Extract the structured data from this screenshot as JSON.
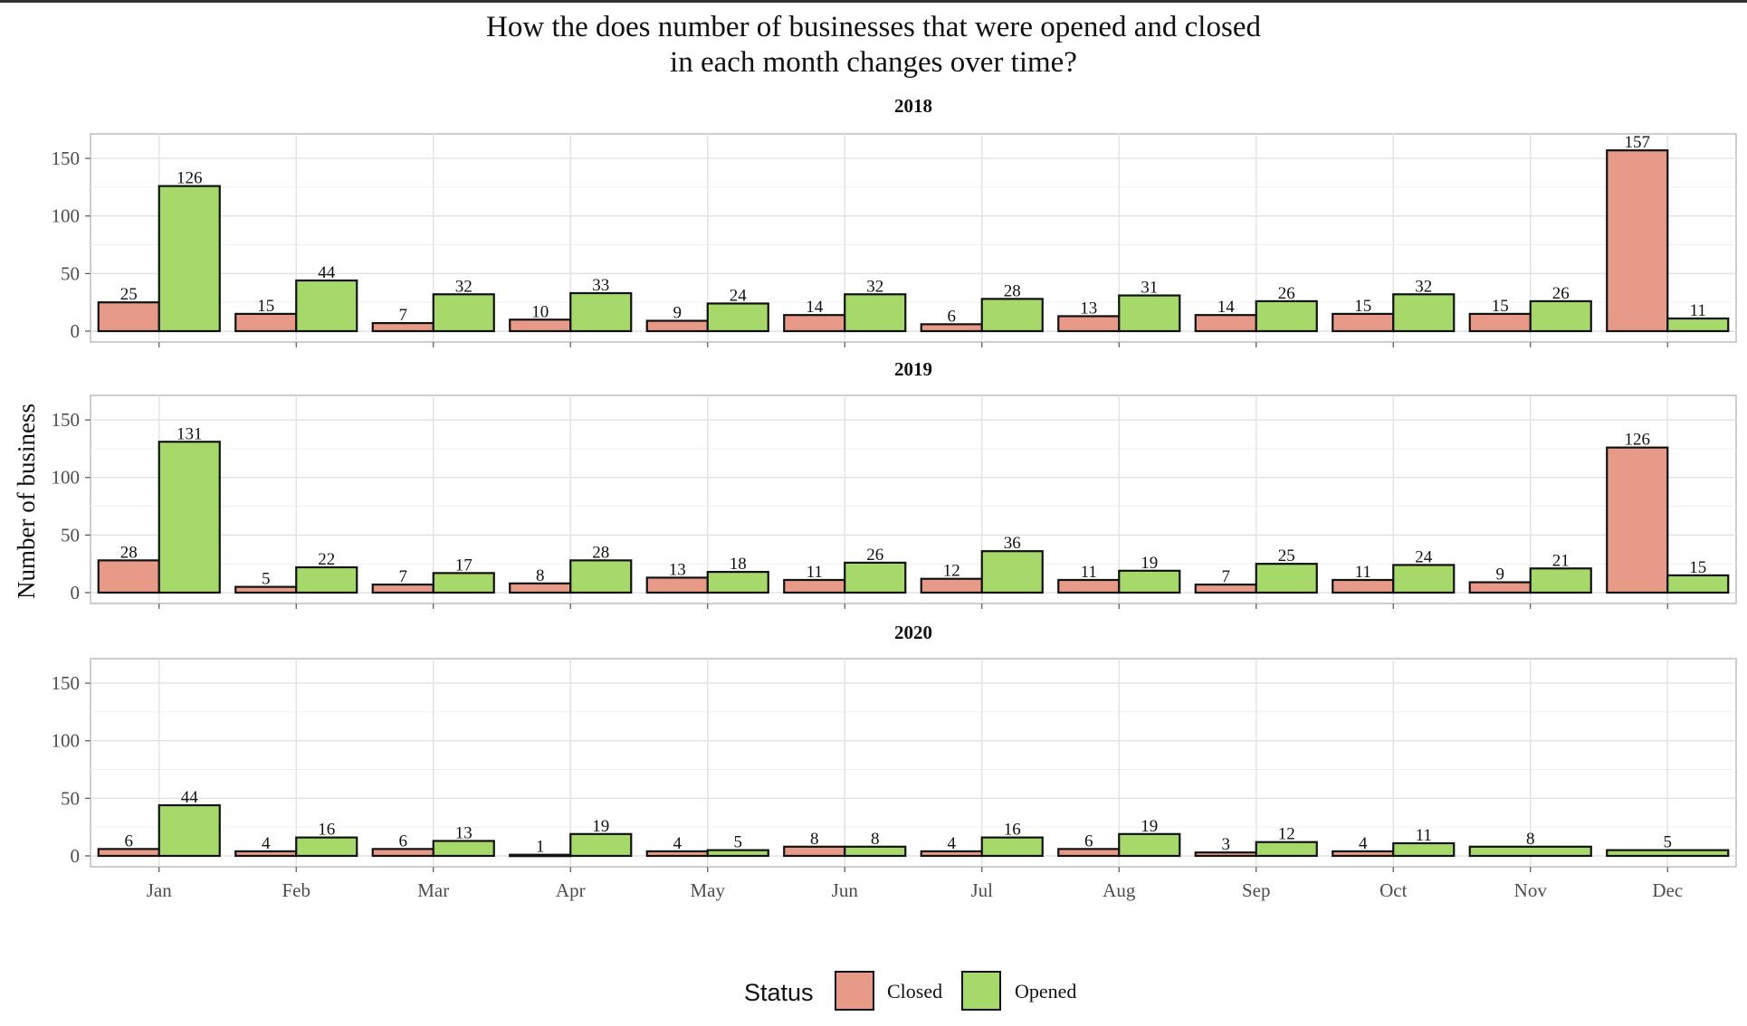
{
  "chart_data": {
    "type": "bar",
    "title_lines": [
      "How the does number of businesses that were opened and closed",
      "in each month changes over time?"
    ],
    "ylabel": "Number of business",
    "xlabel": "",
    "categories": [
      "Jan",
      "Feb",
      "Mar",
      "Apr",
      "May",
      "Jun",
      "Jul",
      "Aug",
      "Sep",
      "Oct",
      "Nov",
      "Dec"
    ],
    "yticks": [
      0,
      50,
      100,
      150
    ],
    "ylim": [
      0,
      165
    ],
    "grid": true,
    "legend": {
      "title": "Status",
      "position": "bottom"
    },
    "series_styles": [
      {
        "name": "Closed",
        "color": "#e89a88"
      },
      {
        "name": "Opened",
        "color": "#a6d96a"
      }
    ],
    "panels": [
      {
        "label": "2018",
        "series": [
          {
            "name": "Closed",
            "values": [
              25,
              15,
              7,
              10,
              9,
              14,
              6,
              13,
              14,
              15,
              15,
              157
            ]
          },
          {
            "name": "Opened",
            "values": [
              126,
              44,
              32,
              33,
              24,
              32,
              28,
              31,
              26,
              32,
              26,
              11
            ]
          }
        ]
      },
      {
        "label": "2019",
        "series": [
          {
            "name": "Closed",
            "values": [
              28,
              5,
              7,
              8,
              13,
              11,
              12,
              11,
              7,
              11,
              9,
              126
            ]
          },
          {
            "name": "Opened",
            "values": [
              131,
              22,
              17,
              28,
              18,
              26,
              36,
              19,
              25,
              24,
              21,
              15
            ]
          }
        ]
      },
      {
        "label": "2020",
        "series": [
          {
            "name": "Closed",
            "values": [
              6,
              4,
              6,
              1,
              4,
              8,
              4,
              6,
              3,
              4,
              null,
              null
            ]
          },
          {
            "name": "Opened",
            "values": [
              44,
              16,
              13,
              19,
              5,
              8,
              16,
              19,
              12,
              11,
              8,
              5
            ]
          }
        ]
      }
    ]
  }
}
